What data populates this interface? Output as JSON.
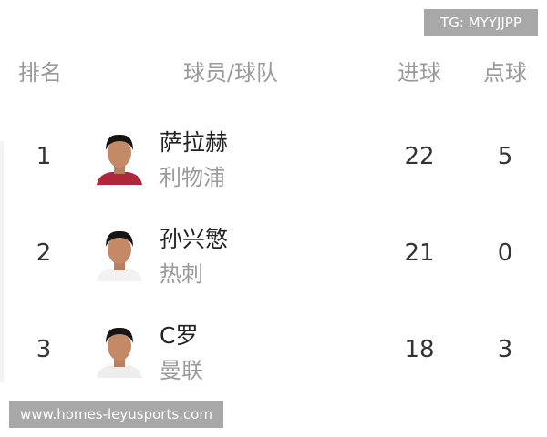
{
  "watermark_top": "TG: MYYJJPP",
  "watermark_bottom": "www.homes-leyusports.com",
  "header": {
    "rank": "排名",
    "player_team": "球员/球队",
    "goals": "进球",
    "penalties": "点球"
  },
  "rows": [
    {
      "rank": "1",
      "name": "萨拉赫",
      "team": "利物浦",
      "goals": "22",
      "penalties": "5",
      "shirt": "#b0263a",
      "hair": "#1a1410"
    },
    {
      "rank": "2",
      "name": "孙兴慜",
      "team": "热刺",
      "goals": "21",
      "penalties": "0",
      "shirt": "#f2f2f2",
      "hair": "#151515"
    },
    {
      "rank": "3",
      "name": "C罗",
      "team": "曼联",
      "goals": "18",
      "penalties": "3",
      "shirt": "#eeeeee",
      "hair": "#1a1410"
    }
  ]
}
